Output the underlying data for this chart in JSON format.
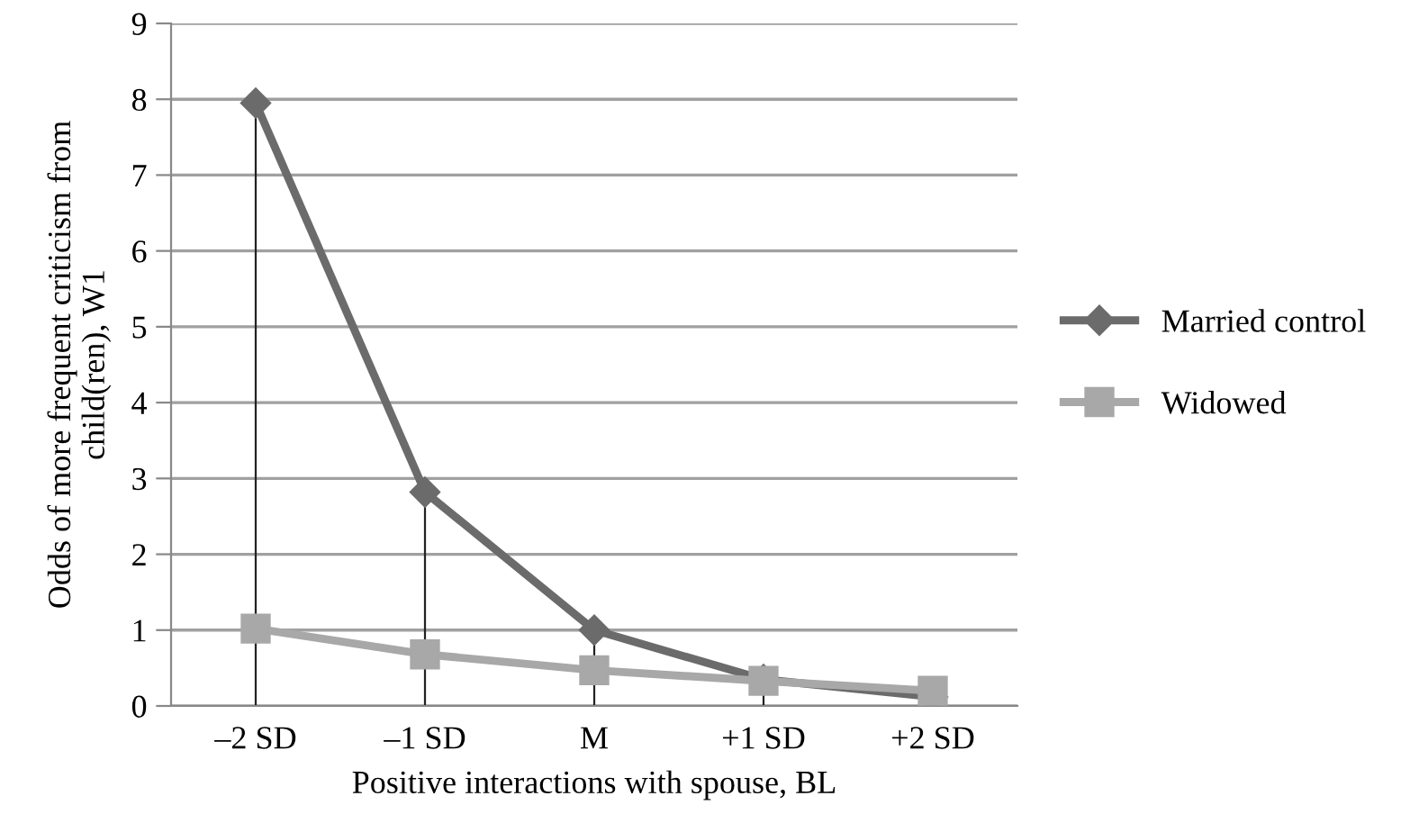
{
  "chart_data": {
    "type": "line",
    "xlabel": "Positive interactions with spouse, BL",
    "ylabel": "Odds of more frequent criticism from\nchild(ren), W1",
    "categories": [
      "–2 SD",
      "–1 SD",
      "M",
      "+1 SD",
      "+2 SD"
    ],
    "series": [
      {
        "name": "Married control",
        "color": "#6b6b6b",
        "marker": "diamond",
        "values": [
          7.95,
          2.82,
          1.0,
          0.35,
          0.12
        ],
        "errors": [
          [
            0,
            7.95
          ],
          [
            0,
            2.82
          ],
          [
            0,
            1.0
          ],
          [
            0,
            0.35
          ],
          [
            0,
            0.12
          ]
        ]
      },
      {
        "name": "Widowed",
        "color": "#a8a8a8",
        "marker": "square",
        "values": [
          1.02,
          0.68,
          0.47,
          0.33,
          0.2
        ]
      }
    ],
    "ylim": [
      0,
      9
    ],
    "yticks": [
      0,
      1,
      2,
      3,
      4,
      5,
      6,
      7,
      8,
      9
    ],
    "grid": "y",
    "legend": "right",
    "line_style": "solid"
  }
}
